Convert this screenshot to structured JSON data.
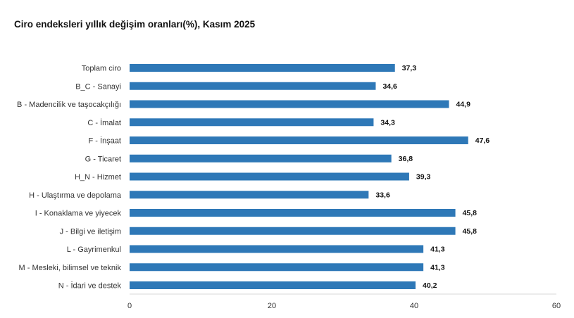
{
  "chart_data": {
    "type": "bar",
    "orientation": "horizontal",
    "title": "Ciro endeksleri yıllık değişim oranları(%), Kasım 2025",
    "categories": [
      "Toplam ciro",
      "B_C - Sanayi",
      "B - Madencilik ve taşocakçılığı",
      "C - İmalat",
      "F - İnşaat",
      "G - Ticaret",
      "H_N - Hizmet",
      "H - Ulaştırma ve depolama",
      "I - Konaklama ve yiyecek",
      "J - Bilgi ve iletişim",
      "L - Gayrimenkul",
      "M - Mesleki, bilimsel ve teknik",
      "N - İdari ve destek"
    ],
    "values": [
      37.3,
      34.6,
      44.9,
      34.3,
      47.6,
      36.8,
      39.3,
      33.6,
      45.8,
      45.8,
      41.3,
      41.3,
      40.2
    ],
    "value_labels": [
      "37,3",
      "34,6",
      "44,9",
      "34,3",
      "47,6",
      "36,8",
      "39,3",
      "33,6",
      "45,8",
      "45,8",
      "41,3",
      "41,3",
      "40,2"
    ],
    "xlim": [
      0,
      60
    ],
    "xticks": [
      "0",
      "20",
      "40",
      "60"
    ],
    "xlabel": "",
    "ylabel": "",
    "bar_color": "#2E78B7",
    "grid": false,
    "legend": "none"
  }
}
